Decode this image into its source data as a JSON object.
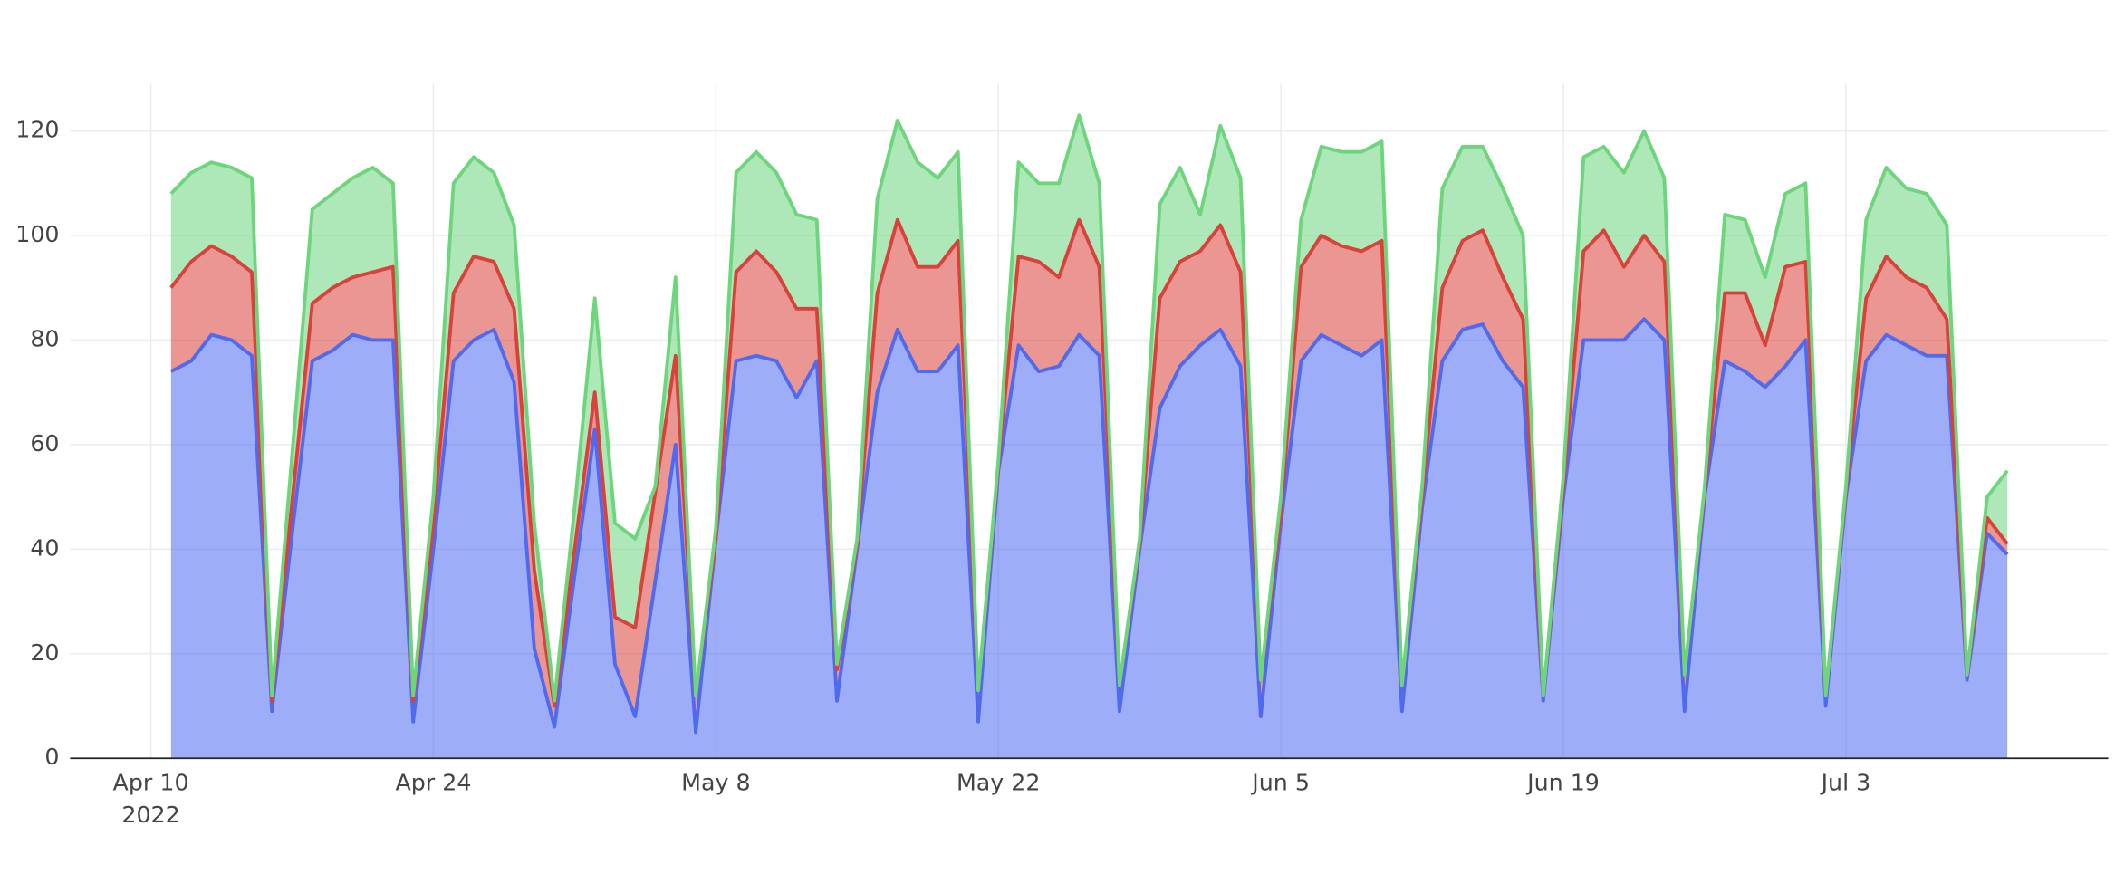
{
  "chart_data": {
    "type": "stacked_area",
    "x": [
      "2022-04-11",
      "2022-04-12",
      "2022-04-13",
      "2022-04-14",
      "2022-04-15",
      "2022-04-16",
      "2022-04-17",
      "2022-04-18",
      "2022-04-19",
      "2022-04-20",
      "2022-04-21",
      "2022-04-22",
      "2022-04-23",
      "2022-04-24",
      "2022-04-25",
      "2022-04-26",
      "2022-04-27",
      "2022-04-28",
      "2022-04-29",
      "2022-04-30",
      "2022-05-01",
      "2022-05-02",
      "2022-05-03",
      "2022-05-04",
      "2022-05-05",
      "2022-05-06",
      "2022-05-07",
      "2022-05-08",
      "2022-05-09",
      "2022-05-10",
      "2022-05-11",
      "2022-05-12",
      "2022-05-13",
      "2022-05-14",
      "2022-05-15",
      "2022-05-16",
      "2022-05-17",
      "2022-05-18",
      "2022-05-19",
      "2022-05-20",
      "2022-05-21",
      "2022-05-22",
      "2022-05-23",
      "2022-05-24",
      "2022-05-25",
      "2022-05-26",
      "2022-05-27",
      "2022-05-28",
      "2022-05-29",
      "2022-05-30",
      "2022-05-31",
      "2022-06-01",
      "2022-06-02",
      "2022-06-03",
      "2022-06-04",
      "2022-06-05",
      "2022-06-06",
      "2022-06-07",
      "2022-06-08",
      "2022-06-09",
      "2022-06-10",
      "2022-06-11",
      "2022-06-12",
      "2022-06-13",
      "2022-06-14",
      "2022-06-15",
      "2022-06-16",
      "2022-06-17",
      "2022-06-18",
      "2022-06-19",
      "2022-06-20",
      "2022-06-21",
      "2022-06-22",
      "2022-06-23",
      "2022-06-24",
      "2022-06-25",
      "2022-06-26",
      "2022-06-27",
      "2022-06-28",
      "2022-06-29",
      "2022-06-30",
      "2022-07-01",
      "2022-07-02",
      "2022-07-03",
      "2022-07-04",
      "2022-07-05",
      "2022-07-06",
      "2022-07-07",
      "2022-07-08",
      "2022-07-09",
      "2022-07-10",
      "2022-07-11"
    ],
    "series": [
      {
        "color": "#4f6af0",
        "values": [
          74,
          76,
          81,
          80,
          77,
          9,
          43,
          76,
          78,
          81,
          80,
          80,
          7,
          40,
          76,
          80,
          82,
          72,
          21,
          6,
          35,
          63,
          18,
          8,
          34,
          60,
          5,
          42,
          76,
          77,
          76,
          69,
          76,
          11,
          40,
          70,
          82,
          74,
          74,
          79,
          7,
          55,
          79,
          74,
          75,
          81,
          77,
          9,
          40,
          67,
          75,
          79,
          82,
          75,
          8,
          45,
          76,
          81,
          79,
          77,
          80,
          9,
          48,
          76,
          82,
          83,
          76,
          71,
          11,
          50,
          80,
          80,
          80,
          84,
          80,
          9,
          50,
          76,
          74,
          71,
          75,
          80,
          10,
          50,
          76,
          81,
          79,
          77,
          77,
          15,
          43,
          39
        ]
      },
      {
        "color": "#d9413a",
        "values": [
          16,
          19,
          17,
          16,
          16,
          2,
          6,
          11,
          12,
          11,
          13,
          14,
          4,
          5,
          13,
          16,
          13,
          14,
          15,
          4,
          5,
          7,
          9,
          17,
          17,
          17,
          7,
          0,
          17,
          20,
          17,
          17,
          10,
          6,
          1,
          19,
          21,
          20,
          20,
          20,
          6,
          1,
          17,
          21,
          17,
          22,
          17,
          5,
          1,
          21,
          20,
          18,
          20,
          18,
          7,
          2,
          18,
          19,
          19,
          20,
          19,
          5,
          2,
          14,
          17,
          18,
          16,
          13,
          1,
          2,
          17,
          21,
          14,
          16,
          15,
          7,
          1,
          13,
          15,
          8,
          19,
          15,
          2,
          1,
          12,
          15,
          13,
          13,
          7,
          1,
          3,
          2
        ]
      },
      {
        "color": "#6dd67d",
        "values": [
          18,
          17,
          16,
          17,
          18,
          1,
          9,
          18,
          18,
          19,
          20,
          16,
          1,
          5,
          21,
          19,
          17,
          16,
          9,
          1,
          8,
          18,
          18,
          17,
          1,
          15,
          0,
          2,
          19,
          19,
          19,
          18,
          17,
          1,
          1,
          18,
          19,
          20,
          17,
          17,
          0,
          1,
          18,
          15,
          18,
          20,
          16,
          0,
          1,
          18,
          18,
          7,
          19,
          18,
          0,
          3,
          9,
          17,
          18,
          19,
          19,
          0,
          2,
          19,
          18,
          16,
          17,
          16,
          0,
          2,
          18,
          16,
          18,
          20,
          16,
          0,
          1,
          15,
          14,
          13,
          14,
          15,
          0,
          1,
          15,
          17,
          17,
          18,
          18,
          0,
          4,
          14
        ]
      }
    ],
    "xlim": [
      "2022-04-06",
      "2022-07-16"
    ],
    "xticks": [
      {
        "value": "2022-04-10",
        "label": "Apr 10"
      },
      {
        "value": "2022-04-24",
        "label": "Apr 24"
      },
      {
        "value": "2022-05-08",
        "label": "May 8"
      },
      {
        "value": "2022-05-22",
        "label": "May 22"
      },
      {
        "value": "2022-06-05",
        "label": "Jun 5"
      },
      {
        "value": "2022-06-19",
        "label": "Jun 19"
      },
      {
        "value": "2022-07-03",
        "label": "Jul 3"
      }
    ],
    "x_year_label": "2022",
    "ylim": [
      0,
      129
    ],
    "yticks": [
      0,
      20,
      40,
      60,
      80,
      100,
      120
    ],
    "grid": true
  }
}
